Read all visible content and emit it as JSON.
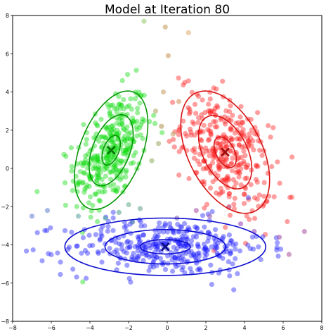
{
  "chart_data": {
    "type": "scatter",
    "title": "Model at Iteration 80",
    "xlabel": "",
    "ylabel": "",
    "xlim": [
      -8,
      8
    ],
    "ylim": [
      -8,
      8
    ],
    "xticks": [
      -8,
      -6,
      -4,
      -2,
      0,
      2,
      4,
      6,
      8
    ],
    "yticks": [
      -8,
      -6,
      -4,
      -2,
      0,
      2,
      4,
      6,
      8
    ],
    "grid": false,
    "components": [
      {
        "mean": [
          -2.9,
          0.95
        ],
        "sd": [
          0.95,
          1.55
        ],
        "corr": 0.45,
        "n": 340,
        "color": "#0cdc0c",
        "ellipse_color": "#079607"
      },
      {
        "mean": [
          3.0,
          0.85
        ],
        "sd": [
          1.15,
          1.6
        ],
        "corr": -0.45,
        "n": 340,
        "color": "#ff1a1a",
        "ellipse_color": "#d61414"
      },
      {
        "mean": [
          -0.1,
          -4.1
        ],
        "sd": [
          2.6,
          0.75
        ],
        "corr": 0.0,
        "n": 360,
        "color": "#1a1aff",
        "ellipse_color": "#0c0cd0"
      }
    ],
    "mixed_points": [
      {
        "x": -0.6,
        "y": 3.0,
        "color": "#b5a86a"
      },
      {
        "x": -0.3,
        "y": 2.2,
        "color": "#b39a58"
      },
      {
        "x": -0.2,
        "y": 4.0,
        "color": "#caa26e"
      },
      {
        "x": 0.05,
        "y": 5.9,
        "color": "#cc9a5a"
      },
      {
        "x": -0.1,
        "y": 7.4,
        "color": "#c8a060"
      },
      {
        "x": -1.2,
        "y": 7.7,
        "color": "#9dcd6c"
      },
      {
        "x": 1.1,
        "y": 7.1,
        "color": "#e0b07a"
      },
      {
        "x": -0.45,
        "y": 1.3,
        "color": "#a6ad6a"
      },
      {
        "x": 0.3,
        "y": 1.8,
        "color": "#c6a26a"
      },
      {
        "x": -0.8,
        "y": 0.4,
        "color": "#98b46a"
      },
      {
        "x": 0.6,
        "y": 3.5,
        "color": "#d39868"
      },
      {
        "x": -2.5,
        "y": -2.3,
        "color": "#5aa096"
      },
      {
        "x": -1.8,
        "y": -2.8,
        "color": "#5b92a4"
      },
      {
        "x": -3.2,
        "y": -2.6,
        "color": "#55a8a0"
      },
      {
        "x": -1.4,
        "y": -2.1,
        "color": "#6aa890"
      },
      {
        "x": 2.2,
        "y": -2.5,
        "color": "#a060b8"
      },
      {
        "x": 3.8,
        "y": -2.9,
        "color": "#a04ec0"
      },
      {
        "x": 1.5,
        "y": -2.2,
        "color": "#b05aa8"
      },
      {
        "x": 4.5,
        "y": -3.3,
        "color": "#9b4cc0"
      },
      {
        "x": 5.8,
        "y": -3.6,
        "color": "#a456b0"
      },
      {
        "x": -6.2,
        "y": -2.2,
        "color": "#6a8ad0"
      },
      {
        "x": -7.0,
        "y": -2.5,
        "color": "#6e86d8"
      },
      {
        "x": 6.3,
        "y": -4.5,
        "color": "#b060a0"
      },
      {
        "x": 7.1,
        "y": -3.3,
        "color": "#b45ea6"
      },
      {
        "x": -4.6,
        "y": -2.5,
        "color": "#62a8a8"
      },
      {
        "x": 3.2,
        "y": -2.0,
        "color": "#bf5a8c"
      },
      {
        "x": -2.0,
        "y": -1.9,
        "color": "#70b090"
      },
      {
        "x": 0.5,
        "y": -2.6,
        "color": "#8a6ab8"
      }
    ],
    "centers": [
      {
        "x": -2.9,
        "y": 0.95,
        "color": "#0a7a0a"
      },
      {
        "x": 3.0,
        "y": 0.85,
        "color": "#a01010"
      },
      {
        "x": -0.1,
        "y": -4.1,
        "color": "#10108a"
      }
    ],
    "ellipse_levels": [
      0.5,
      1.2,
      2.0
    ]
  }
}
